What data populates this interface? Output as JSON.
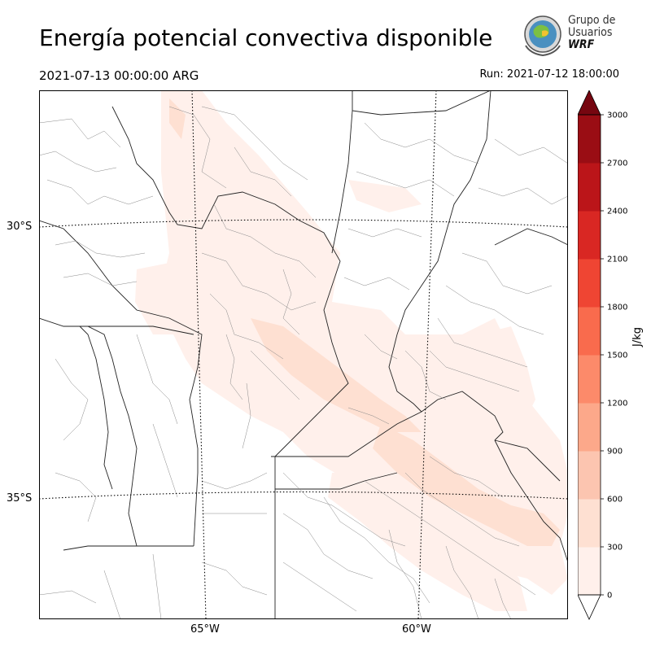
{
  "header": {
    "title": "Energía potencial convectiva disponible",
    "valid_time": "2021-07-13 00:00:00 ARG",
    "run_time": "Run: 2021-07-12 18:00:00"
  },
  "logo": {
    "line1": "Grupo de",
    "line2": "Usuarios",
    "line3": "WRF"
  },
  "map": {
    "lat_labels": [
      "30°S",
      "35°S"
    ],
    "lon_labels": [
      "65°W",
      "60°W"
    ]
  },
  "colorbar": {
    "unit": "J/kg",
    "ticks": [
      "0",
      "300",
      "600",
      "900",
      "1200",
      "1500",
      "1800",
      "2100",
      "2400",
      "2700",
      "3000"
    ],
    "colors": [
      "#fff0eb",
      "#fee0d2",
      "#fcc5b0",
      "#fca88a",
      "#fc8a6a",
      "#f96b4d",
      "#ef4533",
      "#d92723",
      "#bb1519",
      "#9a0d14",
      "#760610"
    ]
  }
}
